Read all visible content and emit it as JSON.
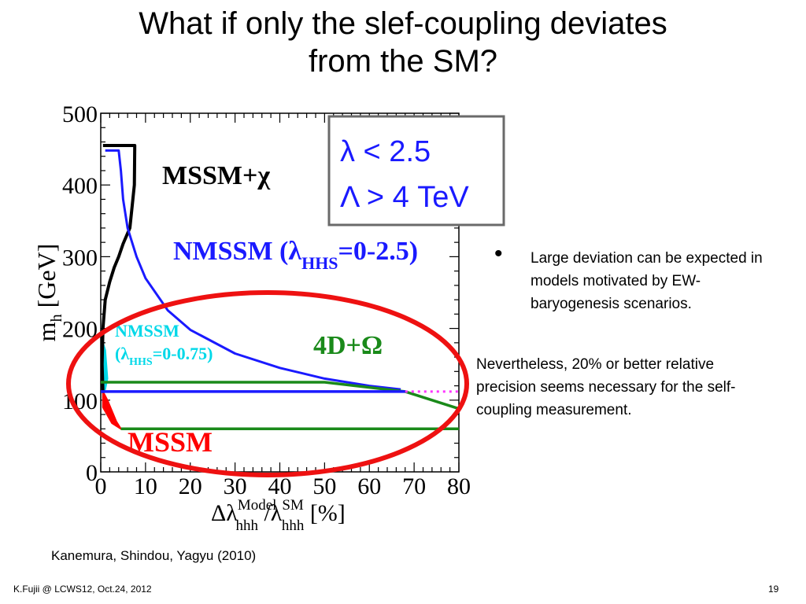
{
  "slide": {
    "title_line1": "What if only the slef-coupling deviates",
    "title_line2": "from the SM?",
    "bullet_symbol": "•",
    "bullet_text": "Large deviation can be expected in models motivated by EW-baryogenesis scenarios.",
    "note": "Nevertheless, 20% or better relative precision seems necessary for the self-coupling measurement.",
    "citation": "Kanemura, Shindou, Yagyu (2010)",
    "footer_left": "K.Fujii @ LCWS12, Oct.24, 2012",
    "page_number": "19"
  },
  "chart_data": {
    "type": "line",
    "xlabel": "Δλhhh Model /λhhh SM [%]",
    "ylabel": "mh [GeV]",
    "xlim": [
      0,
      80
    ],
    "ylim": [
      0,
      500
    ],
    "xticks": [
      "0",
      "10",
      "20",
      "30",
      "40",
      "50",
      "60",
      "70",
      "80"
    ],
    "yticks": [
      "0",
      "100",
      "200",
      "300",
      "400",
      "500"
    ],
    "constraint_box": {
      "line1": "λ < 2.5",
      "line2": "Λ > 4 TeV"
    },
    "colors": {
      "mssm_chi": "#000000",
      "nmssm": "#1a1aff",
      "nmssm_small": "#00d8e8",
      "four_d_omega": "#1a8a1a",
      "mssm": "#ff0000",
      "sm_dotted": "#ff33ff",
      "ellipse": "#ee1111"
    },
    "region_labels": {
      "mssm_chi": "MSSM+χ",
      "nmssm_main": "NMSSM (λ",
      "nmssm_sub": "HHS",
      "nmssm_range": "=0-2.5)",
      "nmssm_small_line1": "NMSSM",
      "nmssm_small_paren": "(λ",
      "nmssm_small_sub": "HHS",
      "nmssm_small_range": "=0-0.75)",
      "four_d_omega": "4D+Ω",
      "mssm": "MSSM"
    },
    "series": [
      {
        "name": "MSSM+χ",
        "x": [
          0.5,
          0.3,
          0.5,
          1.0,
          2.0,
          3.0,
          4.0,
          5.0,
          6.5,
          7.5,
          7.6,
          7.5,
          0.5
        ],
        "y": [
          110,
          150,
          200,
          240,
          265,
          285,
          300,
          318,
          340,
          400,
          455,
          455,
          455
        ]
      },
      {
        "name": "NMSSM (λHHS=0-2.5)",
        "x": [
          1,
          4,
          4.5,
          5,
          6,
          8,
          10,
          15,
          20,
          30,
          40,
          50,
          60,
          67
        ],
        "y": [
          448,
          448,
          420,
          380,
          340,
          300,
          270,
          225,
          198,
          165,
          145,
          130,
          120,
          115
        ]
      },
      {
        "name": "4D+Ω",
        "x": [
          0,
          50,
          68,
          80
        ],
        "y": [
          125,
          125,
          112,
          88
        ]
      },
      {
        "name": "4D+Ω lower",
        "x": [
          4.5,
          80
        ],
        "y": [
          60,
          60
        ]
      },
      {
        "name": "SM",
        "x": [
          0,
          68
        ],
        "y": [
          112,
          112
        ]
      },
      {
        "name": "SM extension",
        "x": [
          68,
          80
        ],
        "y": [
          112,
          112
        ]
      },
      {
        "name": "NMSSM (λHHS=0-0.75)",
        "x": [
          0.5,
          1.0,
          1.5,
          1.0,
          0.5
        ],
        "y": [
          180,
          170,
          130,
          115,
          112
        ]
      },
      {
        "name": "MSSM",
        "x": [
          0.5,
          1.5,
          2.5,
          3.5,
          4.5,
          2.5,
          0.5
        ],
        "y": [
          112,
          100,
          85,
          70,
          60,
          68,
          90
        ]
      }
    ]
  }
}
